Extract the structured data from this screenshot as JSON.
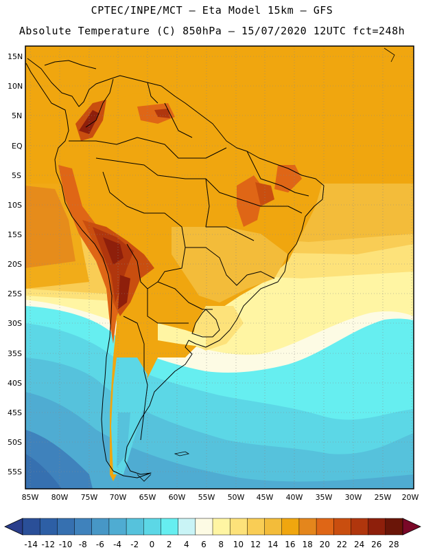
{
  "header": {
    "line1": "CPTEC/INPE/MCT –  Eta Model 15km – GFS",
    "line2": "Absolute Temperature (C) 850hPa – 15/07/2020 12UTC fct=248h"
  },
  "map": {
    "lat_labels": [
      "15N",
      "10N",
      "5N",
      "EQ",
      "5S",
      "10S",
      "15S",
      "20S",
      "25S",
      "30S",
      "35S",
      "40S",
      "45S",
      "50S",
      "55S"
    ],
    "lon_labels": [
      "85W",
      "80W",
      "75W",
      "70W",
      "65W",
      "60W",
      "55W",
      "50W",
      "45W",
      "40W",
      "35W",
      "30W",
      "25W",
      "20W"
    ]
  },
  "colorbar": {
    "labels": [
      "-14",
      "-12",
      "-10",
      "-8",
      "-6",
      "-4",
      "-2",
      "0",
      "2",
      "4",
      "6",
      "8",
      "10",
      "12",
      "14",
      "16",
      "18",
      "20",
      "22",
      "24",
      "26",
      "28"
    ],
    "colors": [
      "#2a4f98",
      "#2d5fa5",
      "#3670b0",
      "#3f82bc",
      "#4797c6",
      "#4facd2",
      "#56c2dc",
      "#5cd7e6",
      "#66eef0",
      "#c9f4f6",
      "#fdfbe4",
      "#fff5a3",
      "#fde27a",
      "#f9cd55",
      "#f3bc3a",
      "#f0a60f",
      "#e4861c",
      "#df6616",
      "#c94e0f",
      "#b0360d",
      "#8e1f0b",
      "#6a1508"
    ],
    "under_color": "#2a3e8c",
    "over_color": "#7a0828"
  }
}
